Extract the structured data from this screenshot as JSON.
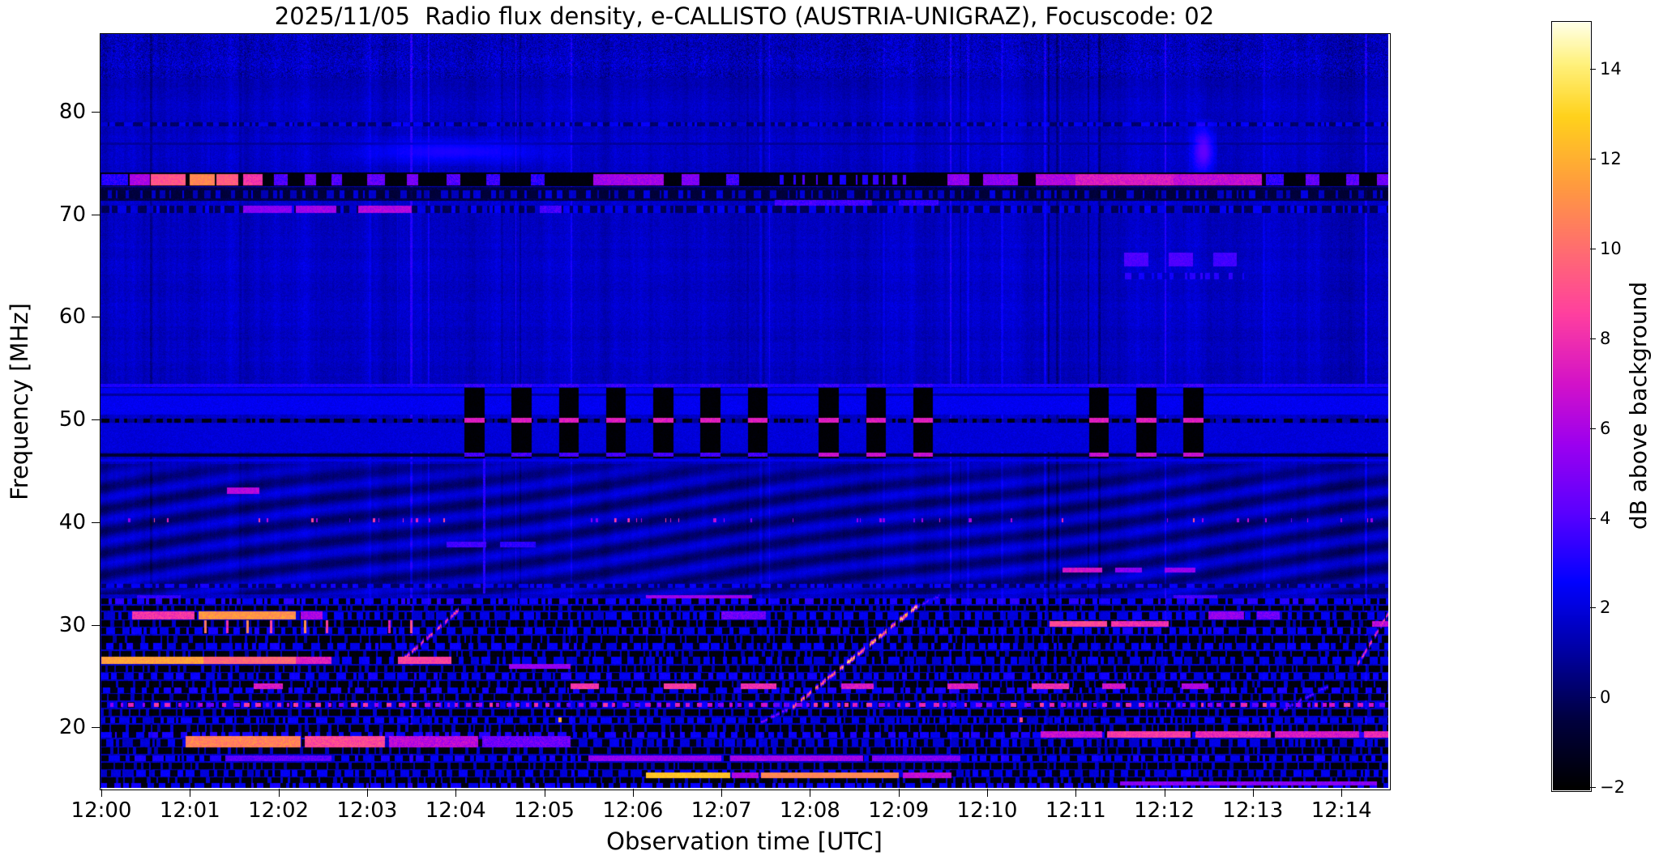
{
  "title": "2025/11/05  Radio flux density, e-CALLISTO (AUSTRIA-UNIGRAZ), Focuscode: 02",
  "chart_data": {
    "type": "heatmap",
    "title": "2025/11/05  Radio flux density, e-CALLISTO (AUSTRIA-UNIGRAZ), Focuscode: 02",
    "xlabel": "Observation time [UTC]",
    "ylabel": "Frequency [MHz]",
    "colorbar_label": "dB above background",
    "x_tick_labels": [
      "12:00",
      "12:01",
      "12:02",
      "12:03",
      "12:04",
      "12:05",
      "12:06",
      "12:07",
      "12:08",
      "12:09",
      "12:10",
      "12:11",
      "12:12",
      "12:13",
      "12:14"
    ],
    "x_range_minutes": [
      0,
      14.53
    ],
    "y_tick_values": [
      80,
      70,
      60,
      50,
      40,
      30,
      20
    ],
    "freq_range_mhz": [
      14.1,
      87.6
    ],
    "value_range_db": [
      -2,
      15
    ],
    "colorbar_tick_values": [
      14,
      12,
      10,
      8,
      6,
      4,
      2,
      0,
      -2
    ],
    "grid": false,
    "legend": "colorbar-right",
    "colormap": {
      "name": "gnuplot2-like",
      "stops": [
        [
          0.0,
          "#000000"
        ],
        [
          0.09,
          "#00003f"
        ],
        [
          0.18,
          "#0000a4"
        ],
        [
          0.27,
          "#0202ff"
        ],
        [
          0.36,
          "#5a00ff"
        ],
        [
          0.45,
          "#9c00f0"
        ],
        [
          0.53,
          "#d312c9"
        ],
        [
          0.62,
          "#ff3fa0"
        ],
        [
          0.7,
          "#ff6a74"
        ],
        [
          0.79,
          "#ff9b3f"
        ],
        [
          0.88,
          "#ffd21c"
        ],
        [
          0.95,
          "#fff27e"
        ],
        [
          1.0,
          "#ffffe0"
        ]
      ]
    },
    "background_level_db": 1.55,
    "noise_seed": 42,
    "features": [
      {
        "type": "noiseband",
        "f0": 83.2,
        "f1": 87.6,
        "amp": 0.95,
        "bias": -0.1
      },
      {
        "type": "dashrow",
        "f": 78.8,
        "th": 5,
        "t0": 0,
        "t1": 14.53,
        "vLow": 0.15,
        "vHigh": 2.3,
        "duty": 0.5
      },
      {
        "type": "hline",
        "f": 76.9,
        "th": 3,
        "v": 0.95,
        "jit": 0.5
      },
      {
        "type": "blob",
        "t0": 2.6,
        "t1": 5.3,
        "f0": 74.7,
        "f1": 77.6,
        "v": 3.3
      },
      {
        "type": "blob",
        "t0": 12.28,
        "t1": 12.6,
        "f0": 73.2,
        "f1": 79.3,
        "v": 4.8
      },
      {
        "type": "band",
        "f0": 71.3,
        "f1": 72.65,
        "v": -0.35,
        "jit": 0.9
      },
      {
        "type": "dashrow",
        "f": 71.95,
        "th": 10,
        "t0": 0,
        "t1": 14.53,
        "vLow": -0.6,
        "vHigh": 1.7,
        "duty": 0.4
      },
      {
        "type": "band",
        "f0": 72.7,
        "f1": 74.05,
        "v": -1.7,
        "jit": 0.35
      },
      {
        "type": "hseg",
        "f": 73.35,
        "th": 14,
        "jit": 1.6,
        "segs": [
          [
            0,
            0.3,
            3.2
          ],
          [
            0.32,
            0.55,
            6
          ],
          [
            0.56,
            0.95,
            9.2
          ],
          [
            1.0,
            1.28,
            10.8
          ],
          [
            1.3,
            1.55,
            9.5
          ],
          [
            1.6,
            1.82,
            8.2
          ],
          [
            1.95,
            2.1,
            4
          ],
          [
            2.3,
            2.42,
            4.6
          ],
          [
            2.6,
            2.72,
            4
          ],
          [
            3.0,
            3.2,
            4.4
          ],
          [
            3.45,
            3.58,
            4.8
          ],
          [
            3.9,
            4.05,
            4
          ],
          [
            4.35,
            4.5,
            3.6
          ],
          [
            4.85,
            5.0,
            3.4
          ],
          [
            5.55,
            6.35,
            5.8
          ],
          [
            6.55,
            6.75,
            5
          ],
          [
            7.05,
            7.2,
            3.6
          ],
          [
            9.55,
            9.8,
            5.4
          ],
          [
            9.95,
            10.35,
            5.3
          ],
          [
            10.55,
            11.0,
            6.2
          ],
          [
            11.0,
            12.1,
            7.3
          ],
          [
            12.1,
            13.1,
            6.6
          ],
          [
            13.15,
            13.35,
            3.4
          ],
          [
            13.6,
            13.75,
            4.4
          ],
          [
            14.05,
            14.2,
            4.2
          ],
          [
            14.4,
            14.53,
            4.6
          ]
        ]
      },
      {
        "type": "dashrow",
        "f": 73.35,
        "th": 12,
        "t0": 7.55,
        "t1": 9.1,
        "vLow": -1.6,
        "vHigh": 3.4,
        "duty": 0.35
      },
      {
        "type": "dashrow",
        "f": 70.5,
        "th": 9,
        "t0": 0,
        "t1": 14.53,
        "vLow": -0.1,
        "vHigh": 2.2,
        "duty": 0.45
      },
      {
        "type": "hseg",
        "f": 70.5,
        "th": 9,
        "jit": 1.4,
        "segs": [
          [
            1.6,
            2.15,
            5.2
          ],
          [
            2.2,
            2.65,
            5.8
          ],
          [
            2.9,
            3.5,
            6.2
          ],
          [
            4.95,
            5.2,
            3.8
          ]
        ]
      },
      {
        "type": "hseg",
        "f": 71.1,
        "th": 7,
        "jit": 1.2,
        "segs": [
          [
            7.6,
            8.7,
            3.7
          ],
          [
            9.0,
            9.45,
            3.4
          ]
        ]
      },
      {
        "type": "hseg",
        "f": 65.6,
        "th": 17,
        "jit": 0.7,
        "segs": [
          [
            11.55,
            11.82,
            3.9
          ],
          [
            12.05,
            12.32,
            3.9
          ],
          [
            12.55,
            12.82,
            3.7
          ]
        ]
      },
      {
        "type": "dashrow",
        "f": 64.0,
        "th": 8,
        "t0": 11.5,
        "t1": 12.9,
        "vLow": 1.4,
        "vHigh": 3.0,
        "duty": 0.4
      },
      {
        "type": "hline",
        "f": 53.3,
        "th": 4,
        "v": 3.0,
        "jit": 0.8
      },
      {
        "type": "band",
        "f0": 50.45,
        "f1": 53.05,
        "v": 2.35,
        "jit": 0.7
      },
      {
        "type": "hline",
        "f": 52.4,
        "th": 3,
        "v": 1.0,
        "jit": 0.4
      },
      {
        "type": "band",
        "f0": 46.85,
        "f1": 49.6,
        "v": 1.95,
        "jit": 0.7
      },
      {
        "type": "dashrow",
        "f": 49.92,
        "th": 5,
        "t0": 0,
        "t1": 14.53,
        "vLow": -1.45,
        "vHigh": 1.2,
        "duty": 0.45
      },
      {
        "type": "hline",
        "f": 46.5,
        "th": 4,
        "v": -0.75,
        "jit": 0.4
      },
      {
        "type": "hline",
        "f": 46.05,
        "th": 3,
        "v": 2.25,
        "jit": 0.6
      },
      {
        "type": "blocks",
        "f0": 46.25,
        "f1": 53.05,
        "period": 0.533,
        "width": 0.225,
        "windows": [
          [
            4.1,
            7.62
          ],
          [
            8.1,
            9.62
          ],
          [
            11.15,
            12.62
          ]
        ],
        "v": -1.85,
        "caps": [
          {
            "f": 53.3,
            "th": 4,
            "v": 3.6
          },
          {
            "f": 49.92,
            "th": 6,
            "v": 7.4
          },
          {
            "f": 46.6,
            "th": 5,
            "vw": [
              3.8,
              6.8,
              6.8
            ]
          }
        ]
      },
      {
        "type": "ripples",
        "f0": 32.95,
        "f1": 45.7,
        "base": 1.05,
        "amp": 0.95,
        "spacing": 27,
        "slope": 0.14,
        "wobble": 0.9
      },
      {
        "type": "dashrow",
        "f": 33.75,
        "th": 5,
        "t0": 0,
        "t1": 14.53,
        "vLow": 0.1,
        "vHigh": 2.5,
        "duty": 0.5
      },
      {
        "type": "hseg",
        "f": 43.1,
        "th": 8,
        "jit": 1.2,
        "segs": [
          [
            1.42,
            1.78,
            6.3
          ]
        ]
      },
      {
        "type": "hseg",
        "f": 37.8,
        "th": 7,
        "jit": 1.0,
        "segs": [
          [
            3.9,
            4.35,
            3.7
          ],
          [
            4.5,
            4.9,
            3.3
          ]
        ]
      },
      {
        "type": "vseg",
        "t": 4.32,
        "f0": 33.0,
        "f1": 46.2,
        "v": 3.2,
        "w": 3
      },
      {
        "type": "dots",
        "f": 40.15,
        "th": 5,
        "count": 54,
        "vmin": 4.5,
        "vmax": 9.4,
        "seed": 7
      },
      {
        "type": "hseg",
        "f": 35.3,
        "th": 6,
        "jit": 1.3,
        "segs": [
          [
            10.85,
            11.3,
            7.0
          ],
          [
            11.45,
            11.75,
            5.2
          ],
          [
            12.0,
            12.35,
            5.6
          ]
        ]
      },
      {
        "type": "hseg",
        "f": 32.7,
        "th": 5,
        "jit": 1.1,
        "segs": [
          [
            0.4,
            0.9,
            3.4
          ],
          [
            6.15,
            7.35,
            5.7
          ],
          [
            12.1,
            12.6,
            3.8
          ]
        ]
      },
      {
        "type": "rfirows",
        "rows": [
          [
            32.3,
            7,
            "d",
            2.9
          ],
          [
            31.6,
            6,
            "b",
            0
          ],
          [
            30.9,
            9,
            "d",
            2.2
          ],
          [
            30.1,
            8,
            "b",
            0
          ],
          [
            29.4,
            8,
            "d",
            2.6
          ],
          [
            28.6,
            9,
            "b",
            0
          ],
          [
            27.9,
            8,
            "d",
            2.4
          ],
          [
            27.1,
            8,
            "b",
            0
          ],
          [
            26.5,
            9,
            "d",
            2.2
          ],
          [
            25.7,
            8,
            "b",
            0
          ],
          [
            25.0,
            8,
            "d",
            2.5
          ],
          [
            24.2,
            8,
            "b",
            0
          ],
          [
            23.6,
            7,
            "d",
            2.7
          ],
          [
            22.9,
            8,
            "b",
            0
          ],
          [
            22.15,
            7,
            "d",
            2.4
          ],
          [
            21.4,
            8,
            "b",
            0
          ],
          [
            20.7,
            7,
            "d",
            2.3
          ],
          [
            19.9,
            9,
            "b",
            0
          ],
          [
            19.3,
            7,
            "d",
            2.8
          ],
          [
            18.5,
            9,
            "d",
            2.0
          ],
          [
            17.7,
            8,
            "b",
            0
          ],
          [
            17.0,
            7,
            "d",
            2.6
          ],
          [
            16.2,
            8,
            "b",
            0
          ],
          [
            15.5,
            8,
            "d",
            2.2
          ],
          [
            14.8,
            8,
            "b",
            0
          ],
          [
            14.35,
            6,
            "d",
            2.6
          ]
        ]
      },
      {
        "type": "hseg",
        "f": 30.9,
        "th": 10,
        "jit": 1.8,
        "segs": [
          [
            0.35,
            1.05,
            8.2
          ],
          [
            1.1,
            2.2,
            11.2
          ],
          [
            2.25,
            2.5,
            6
          ],
          [
            7.0,
            7.5,
            4.6
          ],
          [
            12.5,
            12.9,
            5.4
          ],
          [
            13.05,
            13.3,
            4.6
          ]
        ]
      },
      {
        "type": "hseg",
        "f": 30.1,
        "th": 7,
        "jit": 1.6,
        "segs": [
          [
            10.7,
            11.35,
            8.8
          ],
          [
            11.4,
            12.05,
            8.0
          ],
          [
            14.35,
            14.53,
            6.5
          ]
        ]
      },
      {
        "type": "vticks",
        "f0": 29.2,
        "f1": 30.4,
        "w": 3,
        "v": 9.8,
        "ts": [
          1.18,
          1.42,
          1.65,
          1.92,
          2.3,
          2.55,
          3.25,
          3.5
        ]
      },
      {
        "type": "hseg",
        "f": 26.5,
        "th": 9,
        "jit": 1.5,
        "segs": [
          [
            0,
            1.15,
            11.6
          ],
          [
            1.15,
            2.2,
            9.8
          ],
          [
            2.2,
            2.6,
            7.5
          ],
          [
            3.35,
            3.95,
            8.6
          ]
        ]
      },
      {
        "type": "hseg",
        "f": 25.9,
        "th": 6,
        "jit": 1.2,
        "segs": [
          [
            4.6,
            5.3,
            5.6
          ]
        ]
      },
      {
        "type": "hseg",
        "f": 24.0,
        "th": 7,
        "jit": 1.6,
        "segs": [
          [
            1.72,
            2.05,
            7.2
          ],
          [
            5.3,
            5.62,
            8.2
          ],
          [
            6.35,
            6.72,
            8.4
          ],
          [
            7.22,
            7.62,
            8.0
          ],
          [
            8.35,
            8.72,
            7.2
          ],
          [
            9.55,
            9.9,
            7.4
          ],
          [
            10.5,
            10.92,
            8.0
          ],
          [
            11.3,
            11.56,
            7.0
          ],
          [
            12.2,
            12.5,
            6.2
          ]
        ]
      },
      {
        "type": "dotline",
        "f": 22.15,
        "th": 5,
        "t0": 0.1,
        "t1": 14.5,
        "dash": 0.05,
        "gap": 0.06,
        "vmin": 4.2,
        "vmax": 8.8,
        "seed": 11
      },
      {
        "type": "vticks",
        "f0": 20.45,
        "f1": 21.0,
        "w": 4,
        "v": 11.5,
        "ts": [
          5.18,
          10.38
        ]
      },
      {
        "type": "hseg",
        "f": 19.3,
        "th": 8,
        "jit": 1.7,
        "segs": [
          [
            10.6,
            11.3,
            6.8
          ],
          [
            11.35,
            12.3,
            8.4
          ],
          [
            12.35,
            13.2,
            7.8
          ],
          [
            13.25,
            14.2,
            7.2
          ],
          [
            14.25,
            14.53,
            7.8
          ]
        ]
      },
      {
        "type": "hseg",
        "f": 18.6,
        "th": 14,
        "jit": 2.0,
        "segs": [
          [
            0.95,
            2.25,
            10.6
          ],
          [
            2.3,
            3.2,
            8.8
          ],
          [
            3.25,
            4.25,
            6.4
          ],
          [
            4.3,
            5.3,
            4.6
          ]
        ]
      },
      {
        "type": "hseg",
        "f": 17.0,
        "th": 7,
        "jit": 1.5,
        "segs": [
          [
            1.4,
            2.6,
            4.2
          ],
          [
            5.5,
            7.0,
            5.4
          ],
          [
            7.1,
            8.6,
            5.8
          ],
          [
            8.7,
            9.7,
            5.0
          ]
        ]
      },
      {
        "type": "hseg",
        "f": 15.35,
        "th": 7,
        "jit": 1.2,
        "segs": [
          [
            6.15,
            7.1,
            12.5
          ],
          [
            7.12,
            7.42,
            6.2
          ],
          [
            7.45,
            9.0,
            10.8
          ],
          [
            9.05,
            9.6,
            6.6
          ]
        ]
      },
      {
        "type": "hseg",
        "f": 14.5,
        "th": 5,
        "jit": 1.4,
        "segs": [
          [
            11.5,
            14.4,
            5.2
          ]
        ]
      },
      {
        "type": "burst",
        "t0": 3.42,
        "f0": 26.8,
        "t1": 4.05,
        "f1": 31.6,
        "v": 10.5,
        "w": 3.5
      },
      {
        "type": "burst",
        "t0": 7.45,
        "f0": 20.6,
        "t1": 7.8,
        "f1": 22.0,
        "v": 6.5,
        "w": 3
      },
      {
        "type": "burst",
        "t0": 7.8,
        "f0": 22.0,
        "t1": 9.2,
        "f1": 31.8,
        "v": 12,
        "w": 4,
        "knots": true
      },
      {
        "type": "burst",
        "t0": 9.18,
        "f0": 31.7,
        "t1": 9.45,
        "f1": 32.8,
        "v": 5,
        "w": 3
      },
      {
        "type": "burst",
        "t0": 13.35,
        "f0": 21.8,
        "t1": 13.9,
        "f1": 24.3,
        "v": 5.2,
        "w": 3
      },
      {
        "type": "burst",
        "t0": 14.18,
        "f0": 26.2,
        "t1": 14.53,
        "f1": 31.2,
        "v": 9.5,
        "w": 3.5
      }
    ]
  },
  "notes": {
    "instrument": "e-CALLISTO (AUSTRIA-UNIGRAZ)",
    "date_shown": "2025/11/05",
    "focuscode": "02"
  }
}
